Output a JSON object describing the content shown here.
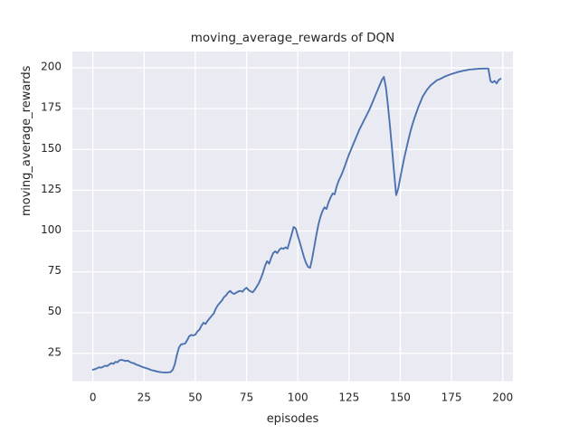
{
  "chart_data": {
    "type": "line",
    "title": "moving_average_rewards of DQN",
    "xlabel": "episodes",
    "ylabel": "moving_average_rewards",
    "x_ticks": [
      0,
      25,
      50,
      75,
      100,
      125,
      150,
      175,
      200
    ],
    "y_ticks": [
      25,
      50,
      75,
      100,
      125,
      150,
      175,
      200
    ],
    "xlim": [
      -10,
      205
    ],
    "ylim": [
      8,
      210
    ],
    "grid": true,
    "legend": "none",
    "colors": {
      "line": "#4c72b0",
      "plot_background": "#eaeaf2",
      "grid": "#ffffff",
      "text": "#262626",
      "figure_background": "#ffffff"
    },
    "series": [
      {
        "name": "moving_average_rewards",
        "x_start": 0,
        "x_step": 1,
        "values": [
          15.0,
          15.3,
          15.8,
          16.5,
          16.2,
          16.8,
          17.5,
          17.2,
          18.2,
          19.0,
          18.6,
          19.8,
          19.5,
          20.8,
          21.0,
          20.7,
          20.3,
          20.6,
          19.8,
          19.2,
          19.0,
          18.2,
          17.8,
          17.3,
          16.8,
          16.3,
          15.9,
          15.6,
          15.0,
          14.6,
          14.3,
          14.0,
          13.7,
          13.5,
          13.4,
          13.3,
          13.3,
          13.4,
          13.6,
          15.0,
          18.5,
          24.0,
          28.5,
          30.5,
          30.8,
          31.0,
          33.0,
          35.5,
          36.3,
          36.0,
          36.5,
          38.5,
          39.5,
          42.0,
          43.8,
          43.0,
          45.0,
          46.5,
          48.0,
          49.5,
          52.5,
          54.5,
          56.0,
          57.5,
          59.5,
          60.5,
          62.3,
          63.3,
          62.0,
          61.5,
          62.2,
          63.0,
          63.3,
          62.8,
          64.3,
          65.2,
          63.8,
          63.0,
          62.4,
          64.0,
          66.0,
          68.0,
          71.0,
          74.5,
          78.5,
          81.5,
          80.0,
          83.5,
          86.5,
          87.5,
          86.5,
          88.5,
          89.5,
          89.0,
          90.0,
          89.2,
          93.5,
          98.0,
          102.5,
          101.5,
          97.0,
          93.0,
          88.5,
          84.0,
          80.5,
          78.0,
          77.5,
          83.0,
          90.0,
          97.0,
          103.5,
          108.5,
          112.0,
          114.5,
          113.5,
          117.5,
          120.5,
          123.0,
          122.5,
          127.5,
          131.0,
          133.5,
          136.5,
          140.0,
          143.5,
          147.0,
          150.0,
          153.0,
          156.0,
          159.0,
          162.0,
          164.5,
          167.0,
          169.5,
          172.0,
          174.5,
          177.5,
          180.5,
          183.5,
          186.5,
          189.5,
          192.5,
          194.5,
          188.0,
          177.0,
          164.0,
          150.0,
          136.0,
          122.0,
          126.0,
          132.5,
          139.0,
          145.0,
          150.5,
          156.0,
          161.0,
          165.5,
          169.5,
          173.0,
          176.5,
          179.5,
          182.5,
          184.5,
          186.5,
          188.0,
          189.5,
          190.5,
          191.5,
          192.5,
          193.0,
          193.5,
          194.2,
          194.8,
          195.3,
          195.8,
          196.2,
          196.6,
          197.0,
          197.4,
          197.7,
          198.0,
          198.3,
          198.5,
          198.8,
          199.0,
          199.1,
          199.2,
          199.3,
          199.4,
          199.5,
          199.5,
          199.6,
          199.6,
          199.6,
          192.0,
          191.0,
          192.0,
          190.5,
          192.5,
          193.3
        ]
      }
    ]
  }
}
